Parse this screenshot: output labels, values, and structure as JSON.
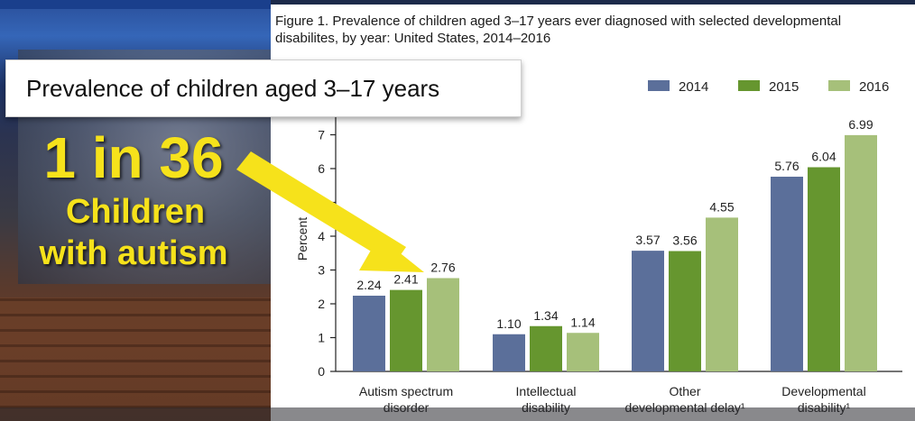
{
  "caption": {
    "line1": "Figure 1. Prevalence of children aged 3–17 years ever diagnosed with selected developmental",
    "line2": "disabilites, by year: United States, 2014–2016"
  },
  "overlay": {
    "title_box": "Prevalence of children aged 3–17 years",
    "stat": "1 in 36",
    "line2": "Children",
    "line3": "with autism"
  },
  "colors": {
    "arrow": "#f6e21b",
    "series": [
      "#5b6f9a",
      "#66962f",
      "#a6c07a"
    ]
  },
  "icons": [
    "arrow-icon"
  ],
  "chart_data": {
    "type": "bar",
    "ylabel": "Percent",
    "xlabel": "",
    "ylim": [
      0,
      8
    ],
    "yticks": [
      0,
      1,
      2,
      3,
      4,
      5,
      6,
      7
    ],
    "categories": [
      [
        "Autism spectrum",
        "disorder"
      ],
      [
        "Intellectual",
        "disability"
      ],
      [
        "Other",
        "developmental delay¹"
      ],
      [
        "Developmental",
        "disability¹"
      ]
    ],
    "series": [
      {
        "name": "2014",
        "values": [
          2.24,
          1.1,
          3.57,
          5.76
        ],
        "labels": [
          "2.24",
          "1.10",
          "3.57",
          "5.76"
        ]
      },
      {
        "name": "2015",
        "values": [
          2.41,
          1.34,
          3.56,
          6.04
        ],
        "labels": [
          "2.41",
          "1.34",
          "3.56",
          "6.04"
        ]
      },
      {
        "name": "2016",
        "values": [
          2.76,
          1.14,
          4.55,
          6.99
        ],
        "labels": [
          "2.76",
          "1.14",
          "4.55",
          "6.99"
        ]
      }
    ],
    "legend": "top-right",
    "grid": false
  }
}
